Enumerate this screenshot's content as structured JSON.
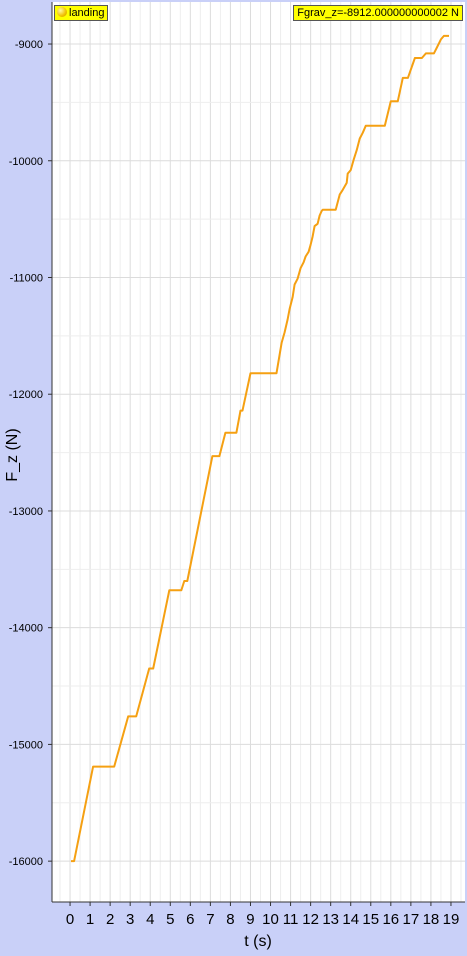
{
  "dataset_badge": {
    "label": "landing",
    "icon": "orange-dot-icon"
  },
  "fgrav_badge": {
    "label": "Fgrav_z=-8912.000000000002 N"
  },
  "chart_data": {
    "type": "line",
    "xlabel": "t (s)",
    "ylabel": "F_z (N)",
    "xlim": [
      -0.9,
      19.7
    ],
    "ylim": [
      -16350,
      -8640
    ],
    "xticks": [
      0,
      1,
      2,
      3,
      4,
      5,
      6,
      7,
      8,
      9,
      10,
      11,
      12,
      13,
      14,
      15,
      16,
      17,
      18,
      19
    ],
    "yticks": [
      -16000,
      -15000,
      -14000,
      -13000,
      -12000,
      -11000,
      -10000,
      -9000
    ],
    "grid": true,
    "series": [
      {
        "color": "#f5a012",
        "points": [
          [
            0.05,
            -16000
          ],
          [
            0.2,
            -16000
          ],
          [
            1.15,
            -15190
          ],
          [
            2.2,
            -15190
          ],
          [
            2.9,
            -14760
          ],
          [
            3.3,
            -14760
          ],
          [
            3.95,
            -14350
          ],
          [
            4.15,
            -14350
          ],
          [
            4.95,
            -13680
          ],
          [
            5.55,
            -13680
          ],
          [
            5.7,
            -13600
          ],
          [
            5.85,
            -13600
          ],
          [
            7.1,
            -12530
          ],
          [
            7.45,
            -12530
          ],
          [
            7.75,
            -12330
          ],
          [
            8.3,
            -12330
          ],
          [
            8.5,
            -12140
          ],
          [
            8.6,
            -12140
          ],
          [
            9.0,
            -11820
          ],
          [
            10.3,
            -11820
          ],
          [
            10.55,
            -11560
          ],
          [
            10.7,
            -11470
          ],
          [
            10.85,
            -11360
          ],
          [
            10.95,
            -11270
          ],
          [
            11.1,
            -11170
          ],
          [
            11.2,
            -11060
          ],
          [
            11.35,
            -11010
          ],
          [
            11.5,
            -10920
          ],
          [
            11.65,
            -10870
          ],
          [
            11.75,
            -10820
          ],
          [
            11.9,
            -10780
          ],
          [
            12.0,
            -10720
          ],
          [
            12.1,
            -10650
          ],
          [
            12.2,
            -10560
          ],
          [
            12.35,
            -10540
          ],
          [
            12.45,
            -10470
          ],
          [
            12.55,
            -10430
          ],
          [
            12.6,
            -10420
          ],
          [
            13.25,
            -10420
          ],
          [
            13.45,
            -10290
          ],
          [
            13.6,
            -10250
          ],
          [
            13.8,
            -10190
          ],
          [
            13.85,
            -10110
          ],
          [
            14.0,
            -10080
          ],
          [
            14.15,
            -9990
          ],
          [
            14.3,
            -9910
          ],
          [
            14.45,
            -9810
          ],
          [
            14.6,
            -9760
          ],
          [
            14.75,
            -9700
          ],
          [
            15.7,
            -9700
          ],
          [
            16.0,
            -9490
          ],
          [
            16.35,
            -9490
          ],
          [
            16.6,
            -9290
          ],
          [
            16.85,
            -9290
          ],
          [
            17.2,
            -9120
          ],
          [
            17.55,
            -9120
          ],
          [
            17.75,
            -9080
          ],
          [
            18.15,
            -9080
          ],
          [
            18.3,
            -9030
          ],
          [
            18.5,
            -8960
          ],
          [
            18.65,
            -8930
          ],
          [
            18.9,
            -8930
          ]
        ]
      }
    ]
  }
}
